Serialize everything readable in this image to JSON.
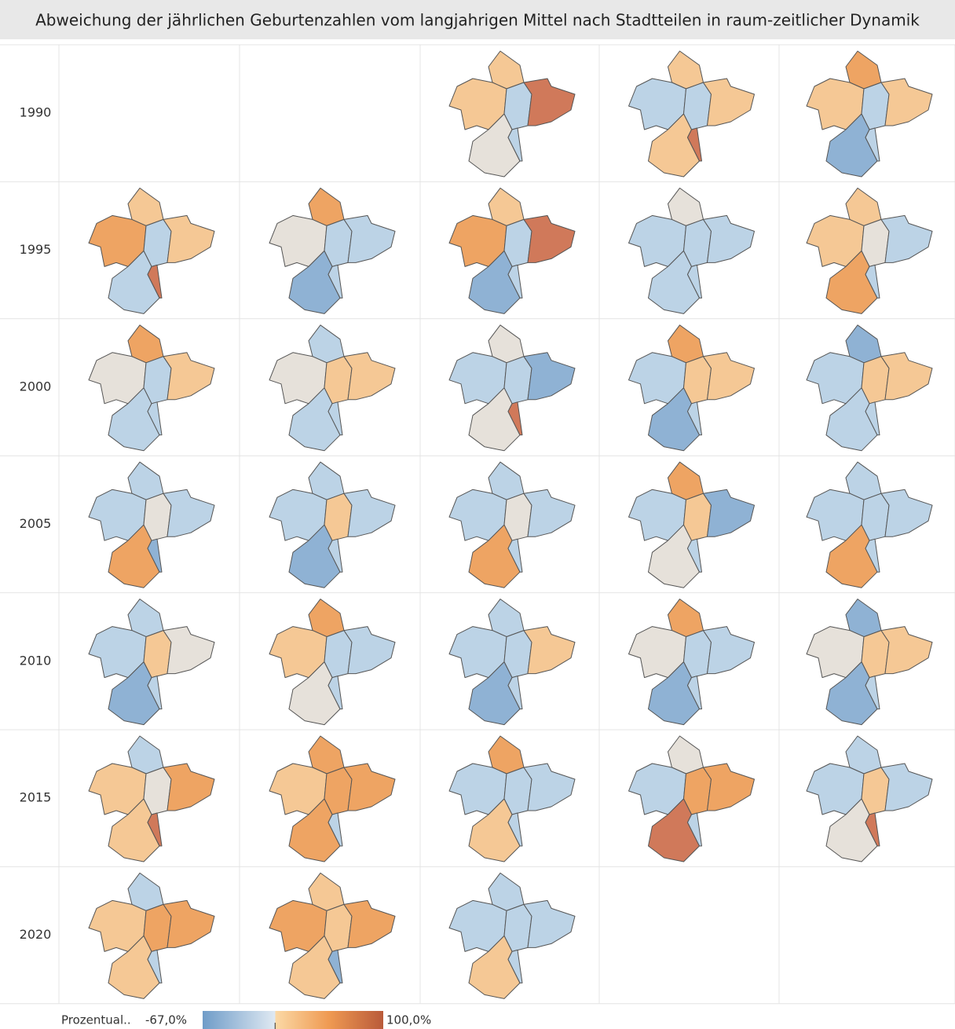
{
  "header": {
    "title": "Abweichung der jährlichen Geburtenzahlen vom langjahrigen Mittel nach Stadtteilen in raum-zeitlicher Dynamik"
  },
  "rows": [
    {
      "label": "1990",
      "maps": [
        null,
        null,
        [
          "#f5c895",
          "#f5c895",
          "#bcd3e6",
          "#d0795a",
          "#e6e1da",
          "#bcd3e6"
        ],
        [
          "#f5c895",
          "#bcd3e6",
          "#bcd3e6",
          "#f5c895",
          "#f5c895",
          "#d0795a"
        ],
        [
          "#eea463",
          "#f5c895",
          "#bcd3e6",
          "#f5c895",
          "#8fb2d4",
          "#bcd3e6"
        ]
      ]
    },
    {
      "label": "1995",
      "maps": [
        [
          "#f5c895",
          "#eea463",
          "#bcd3e6",
          "#f5c895",
          "#bcd3e6",
          "#d0795a"
        ],
        [
          "#eea463",
          "#e6e1da",
          "#bcd3e6",
          "#bcd3e6",
          "#8fb2d4",
          "#bcd3e6"
        ],
        [
          "#f5c895",
          "#eea463",
          "#bcd3e6",
          "#d0795a",
          "#8fb2d4",
          "#bcd3e6"
        ],
        [
          "#e6e1da",
          "#bcd3e6",
          "#bcd3e6",
          "#bcd3e6",
          "#bcd3e6",
          "#bcd3e6"
        ],
        [
          "#f5c895",
          "#f5c895",
          "#e6e1da",
          "#bcd3e6",
          "#eea463",
          "#bcd3e6"
        ]
      ]
    },
    {
      "label": "2000",
      "maps": [
        [
          "#eea463",
          "#e6e1da",
          "#bcd3e6",
          "#f5c895",
          "#bcd3e6",
          "#bcd3e6"
        ],
        [
          "#bcd3e6",
          "#e6e1da",
          "#f5c895",
          "#f5c895",
          "#bcd3e6",
          "#bcd3e6"
        ],
        [
          "#e6e1da",
          "#bcd3e6",
          "#bcd3e6",
          "#8fb2d4",
          "#e6e1da",
          "#d0795a"
        ],
        [
          "#eea463",
          "#bcd3e6",
          "#f5c895",
          "#f5c895",
          "#8fb2d4",
          "#bcd3e6"
        ],
        [
          "#8fb2d4",
          "#bcd3e6",
          "#f5c895",
          "#f5c895",
          "#bcd3e6",
          "#bcd3e6"
        ]
      ]
    },
    {
      "label": "2005",
      "maps": [
        [
          "#bcd3e6",
          "#bcd3e6",
          "#e6e1da",
          "#bcd3e6",
          "#eea463",
          "#8fb2d4"
        ],
        [
          "#bcd3e6",
          "#bcd3e6",
          "#f5c895",
          "#bcd3e6",
          "#8fb2d4",
          "#bcd3e6"
        ],
        [
          "#bcd3e6",
          "#bcd3e6",
          "#e6e1da",
          "#bcd3e6",
          "#eea463",
          "#bcd3e6"
        ],
        [
          "#eea463",
          "#bcd3e6",
          "#f5c895",
          "#8fb2d4",
          "#e6e1da",
          "#bcd3e6"
        ],
        [
          "#bcd3e6",
          "#bcd3e6",
          "#bcd3e6",
          "#bcd3e6",
          "#eea463",
          "#bcd3e6"
        ]
      ]
    },
    {
      "label": "2010",
      "maps": [
        [
          "#bcd3e6",
          "#bcd3e6",
          "#f5c895",
          "#e6e1da",
          "#8fb2d4",
          "#bcd3e6"
        ],
        [
          "#eea463",
          "#f5c895",
          "#bcd3e6",
          "#bcd3e6",
          "#e6e1da",
          "#bcd3e6"
        ],
        [
          "#bcd3e6",
          "#bcd3e6",
          "#bcd3e6",
          "#f5c895",
          "#8fb2d4",
          "#bcd3e6"
        ],
        [
          "#eea463",
          "#e6e1da",
          "#bcd3e6",
          "#bcd3e6",
          "#8fb2d4",
          "#bcd3e6"
        ],
        [
          "#8fb2d4",
          "#e6e1da",
          "#f5c895",
          "#f5c895",
          "#8fb2d4",
          "#bcd3e6"
        ]
      ]
    },
    {
      "label": "2015",
      "maps": [
        [
          "#bcd3e6",
          "#f5c895",
          "#e6e1da",
          "#eea463",
          "#f5c895",
          "#d0795a"
        ],
        [
          "#eea463",
          "#f5c895",
          "#eea463",
          "#eea463",
          "#eea463",
          "#bcd3e6"
        ],
        [
          "#eea463",
          "#bcd3e6",
          "#bcd3e6",
          "#bcd3e6",
          "#f5c895",
          "#bcd3e6"
        ],
        [
          "#e6e1da",
          "#bcd3e6",
          "#eea463",
          "#eea463",
          "#d0795a",
          "#bcd3e6"
        ],
        [
          "#bcd3e6",
          "#bcd3e6",
          "#f5c895",
          "#bcd3e6",
          "#e6e1da",
          "#d0795a"
        ]
      ]
    },
    {
      "label": "2020",
      "maps": [
        [
          "#bcd3e6",
          "#f5c895",
          "#eea463",
          "#eea463",
          "#f5c895",
          "#bcd3e6"
        ],
        [
          "#f5c895",
          "#eea463",
          "#f5c895",
          "#eea463",
          "#f5c895",
          "#8fb2d4"
        ],
        [
          "#bcd3e6",
          "#bcd3e6",
          "#bcd3e6",
          "#bcd3e6",
          "#f5c895",
          "#bcd3e6"
        ],
        null,
        null
      ]
    }
  ],
  "legend": {
    "title": "Prozentual..",
    "min": {
      "value": -67,
      "label": "-67,0%"
    },
    "max": {
      "value": 100,
      "label": "100,0%"
    }
  }
}
